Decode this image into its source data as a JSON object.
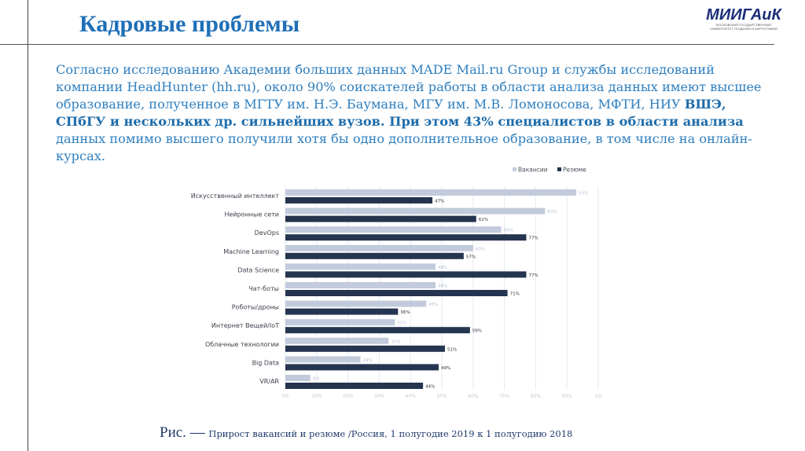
{
  "slide": {
    "title": "Кадровые проблемы",
    "logo": {
      "text": "МИИГАиК",
      "subtitle": "МОСКОВСКИЙ ГОСУДАРСТВЕННЫЙ УНИВЕРСИТЕТ ГЕОДЕЗИИ И КАРТОГРАФИИ"
    },
    "paragraph": {
      "normal_1": "Согласно исследованию Академии больших данных MADE Mail.ru Group и службы исследований компании HeadHunter (hh.ru), около 90% соискателей работы в области анализа данных имеют высшее образование, полученное в МГТУ им. Н.Э. Баумана, МГУ им. М.В. Ломоносова, МФТИ, НИУ ",
      "bold": "ВШЭ, СПбГУ и нескольких др. сильнейших вузов. При этом 43% специалистов в области анализа",
      "normal_2": " данных помимо высшего получили хотя бы одно дополнительное образование, в том числе на онлайн-курсах."
    },
    "caption": {
      "prefix": "Рис. — ",
      "text": "Прирост вакансий и резюме /Россия, 1 полугодие 2019 к 1 полугодию 2018"
    }
  },
  "chart_data": {
    "type": "bar",
    "orientation": "horizontal",
    "title": "",
    "xlabel": "",
    "ylabel": "",
    "xlim": [
      0,
      100
    ],
    "grid": true,
    "legend_position": "top-right",
    "categories": [
      "Искусственный интеллект",
      "Нейронные сети",
      "DevOps",
      "Machine Learning",
      "Data Science",
      "Чат-боты",
      "Роботы/дроны",
      "Интернет Вещей/IoT",
      "Облачные технологии",
      "Big Data",
      "VR/AR"
    ],
    "series": [
      {
        "name": "Вакансии",
        "color": "#c2cbdc",
        "label_color": "#b8c2d4",
        "values": [
          93,
          83,
          69,
          60,
          48,
          48,
          45,
          35,
          33,
          24,
          8
        ]
      },
      {
        "name": "Резюме",
        "color": "#25344f",
        "label_color": "#2a2f3a",
        "values": [
          47,
          61,
          77,
          57,
          77,
          71,
          36,
          59,
          51,
          49,
          44
        ]
      }
    ],
    "x_ticks": [
      "0%",
      "10%",
      "20%",
      "30%",
      "40%",
      "50%",
      "60%",
      "70%",
      "80%",
      "90%",
      "10("
    ],
    "value_suffix": "%"
  }
}
